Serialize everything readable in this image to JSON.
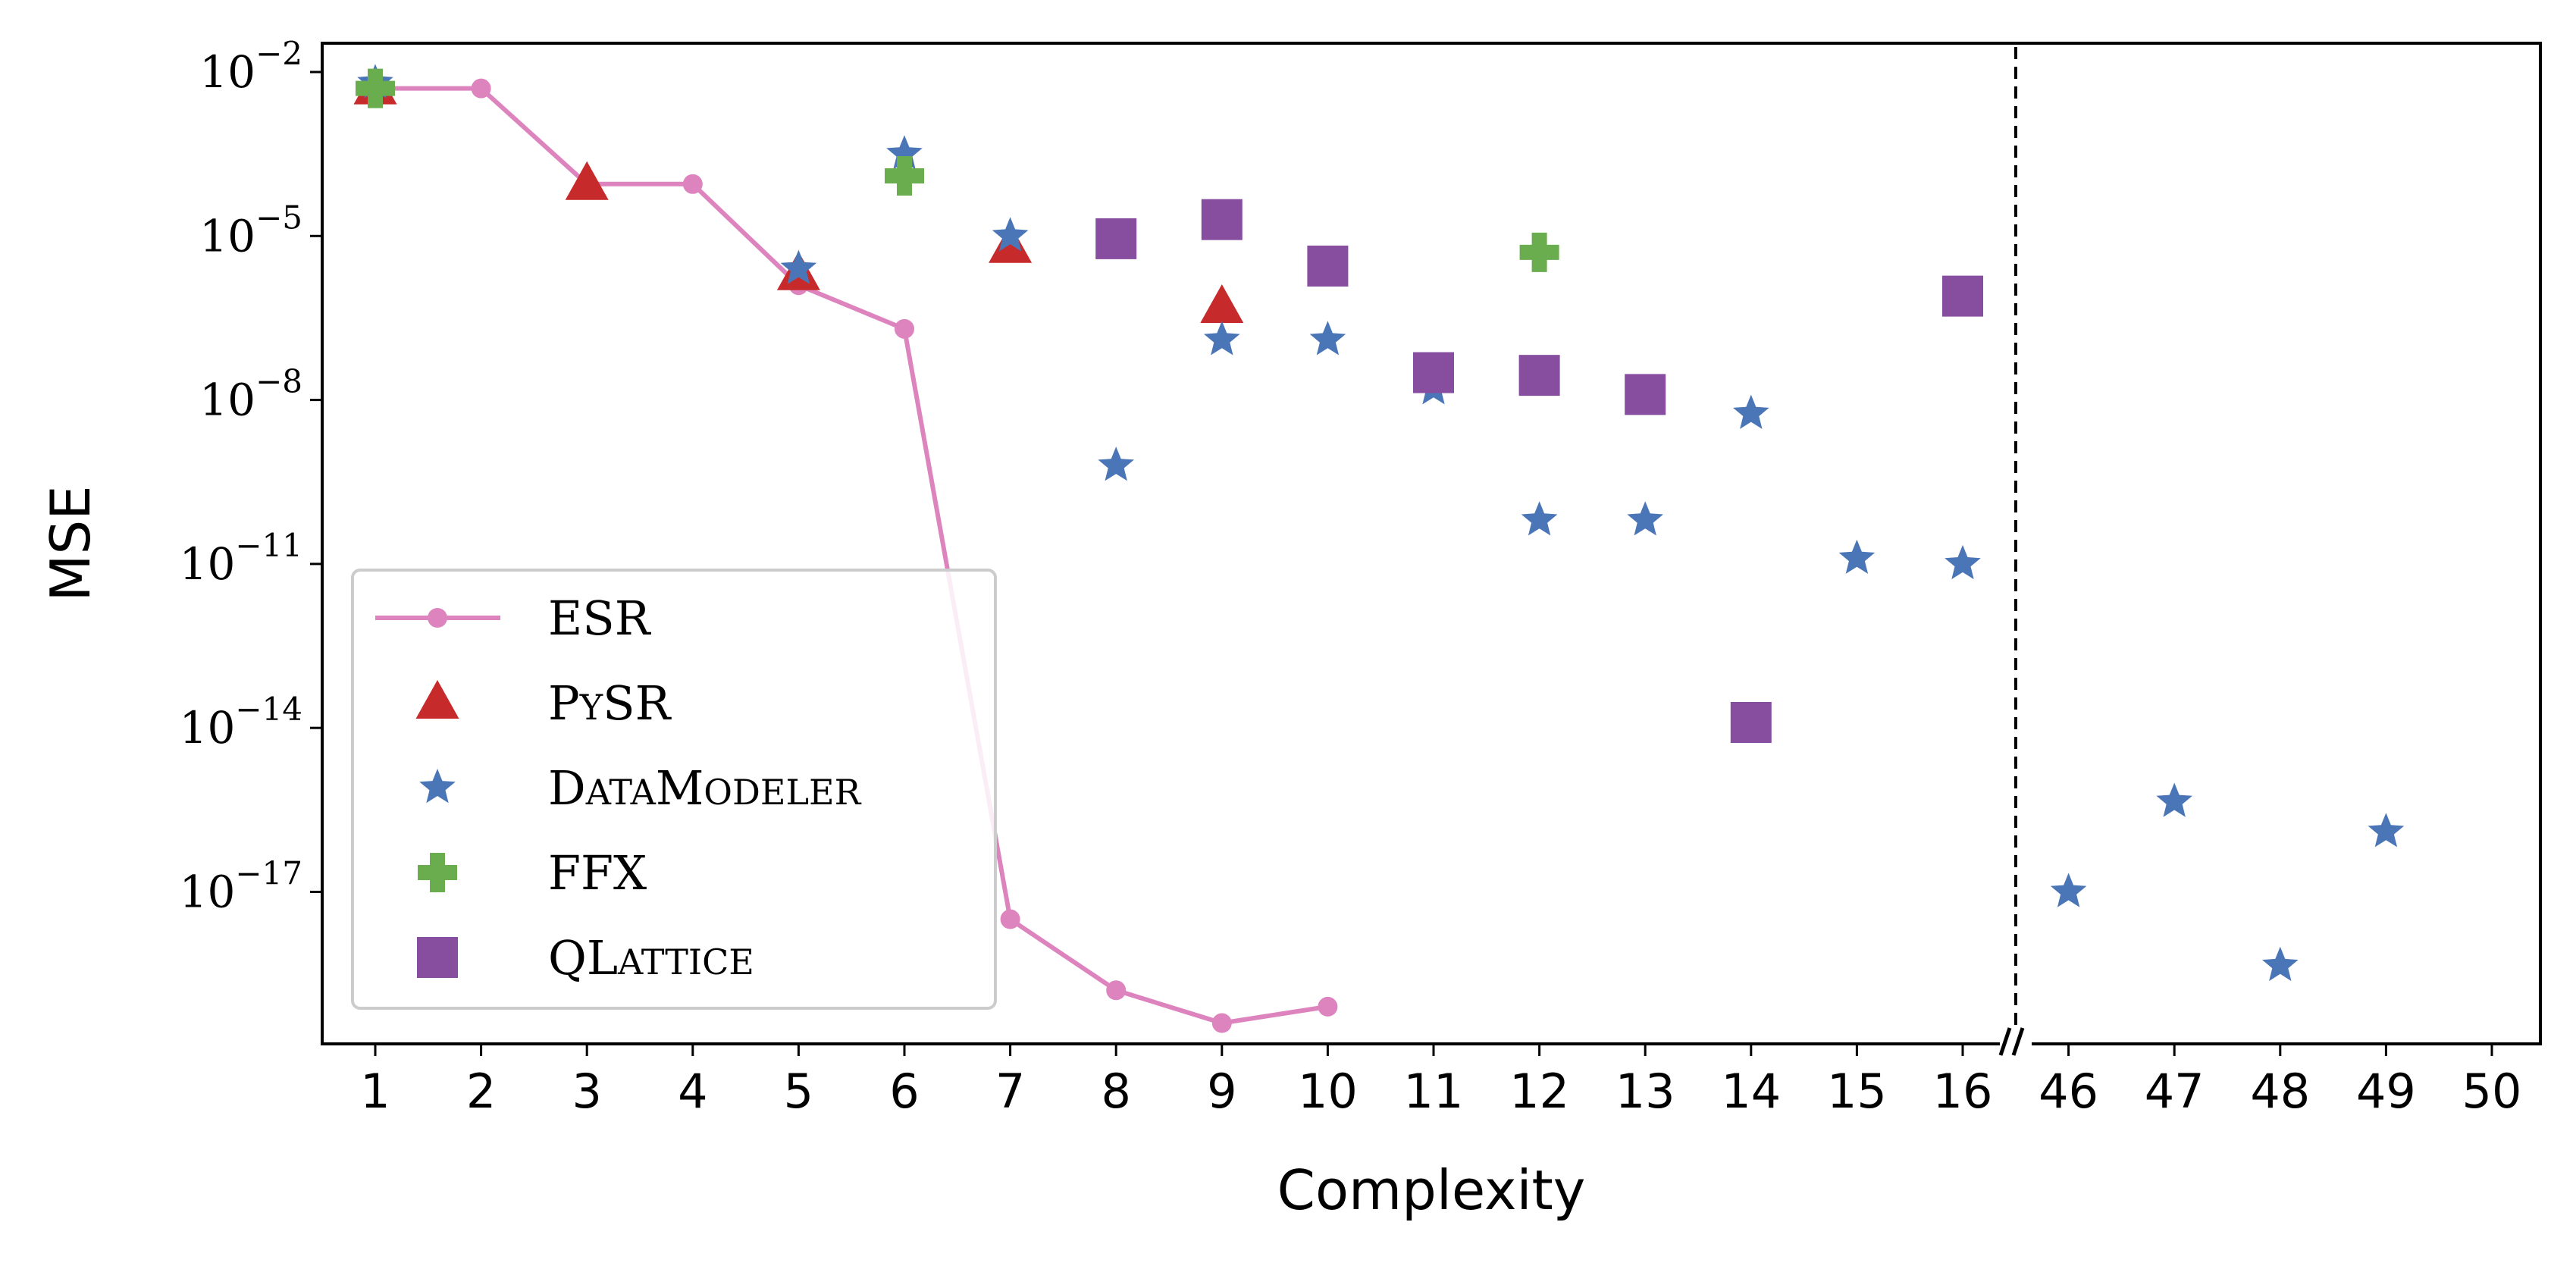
{
  "chart_data": {
    "type": "scatter",
    "xlabel": "Complexity",
    "ylabel": "MSE",
    "y_scale": "log",
    "ylim": [
      1e-20,
      0.01
    ],
    "y_ticks": [
      {
        "value": -2,
        "base": "10",
        "exp": "−2"
      },
      {
        "value": -5,
        "base": "10",
        "exp": "−5"
      },
      {
        "value": -8,
        "base": "10",
        "exp": "−8"
      },
      {
        "value": -11,
        "base": "10",
        "exp": "−11"
      },
      {
        "value": -14,
        "base": "10",
        "exp": "−14"
      },
      {
        "value": -17,
        "base": "10",
        "exp": "−17"
      }
    ],
    "x_categories": [
      "1",
      "2",
      "3",
      "4",
      "5",
      "6",
      "7",
      "8",
      "9",
      "10",
      "11",
      "12",
      "13",
      "14",
      "15",
      "16",
      "46",
      "47",
      "48",
      "49",
      "50"
    ],
    "x_break_after": "16",
    "legend_position": "lower left",
    "grid": false,
    "series": [
      {
        "name": "ESR",
        "marker": "circle-line",
        "color": "#dd84bf",
        "points": [
          [
            1,
            -2.3
          ],
          [
            2,
            -2.3
          ],
          [
            3,
            -4.05
          ],
          [
            4,
            -4.05
          ],
          [
            5,
            -5.9
          ],
          [
            6,
            -6.7
          ],
          [
            7,
            -17.5
          ],
          [
            8,
            -18.8
          ],
          [
            9,
            -19.4
          ],
          [
            10,
            -19.1
          ]
        ]
      },
      {
        "name": "PySR",
        "marker": "triangle",
        "color": "#c72a2a",
        "points": [
          [
            1,
            -2.3
          ],
          [
            3,
            -4.05
          ],
          [
            5,
            -5.7
          ],
          [
            7,
            -5.2
          ],
          [
            9,
            -6.3
          ]
        ]
      },
      {
        "name": "DataModeler",
        "marker": "star",
        "color": "#4a76b7",
        "points": [
          [
            1,
            -2.2
          ],
          [
            5,
            -5.6
          ],
          [
            6,
            -3.5
          ],
          [
            7,
            -5.0
          ],
          [
            9,
            -6.9
          ],
          [
            10,
            -6.9
          ],
          [
            11,
            -7.8
          ],
          [
            8,
            -9.2
          ],
          [
            12,
            -10.2
          ],
          [
            13,
            -10.2
          ],
          [
            14,
            -8.25
          ],
          [
            15,
            -10.9
          ],
          [
            16,
            -11.0
          ],
          [
            46,
            -17.0
          ],
          [
            47,
            -15.35
          ],
          [
            48,
            -18.35
          ],
          [
            49,
            -15.9
          ]
        ]
      },
      {
        "name": "FFX",
        "marker": "plus",
        "color": "#6aad4e",
        "points": [
          [
            1,
            -2.3
          ],
          [
            6,
            -3.9
          ],
          [
            12,
            -5.3
          ]
        ]
      },
      {
        "name": "QLattice",
        "marker": "square",
        "color": "#874ea0",
        "points": [
          [
            8,
            -5.05
          ],
          [
            9,
            -4.7
          ],
          [
            10,
            -5.55
          ],
          [
            11,
            -7.5
          ],
          [
            12,
            -7.55
          ],
          [
            13,
            -7.9
          ],
          [
            14,
            -13.9
          ],
          [
            16,
            -6.1
          ]
        ]
      }
    ],
    "legend_labels": [
      {
        "series": "ESR",
        "parts": [
          {
            "t": "ESR",
            "sc": false
          }
        ]
      },
      {
        "series": "PySR",
        "parts": [
          {
            "t": "P",
            "sc": false
          },
          {
            "t": "Y",
            "sc": true
          },
          {
            "t": "SR",
            "sc": false
          }
        ]
      },
      {
        "series": "DataModeler",
        "parts": [
          {
            "t": "D",
            "sc": false
          },
          {
            "t": "ATA",
            "sc": true
          },
          {
            "t": "M",
            "sc": false
          },
          {
            "t": "ODELER",
            "sc": true
          }
        ]
      },
      {
        "series": "FFX",
        "parts": [
          {
            "t": "FFX",
            "sc": false
          }
        ]
      },
      {
        "series": "QLattice",
        "parts": [
          {
            "t": "QL",
            "sc": false
          },
          {
            "t": "ATTICE",
            "sc": true
          }
        ]
      }
    ]
  }
}
